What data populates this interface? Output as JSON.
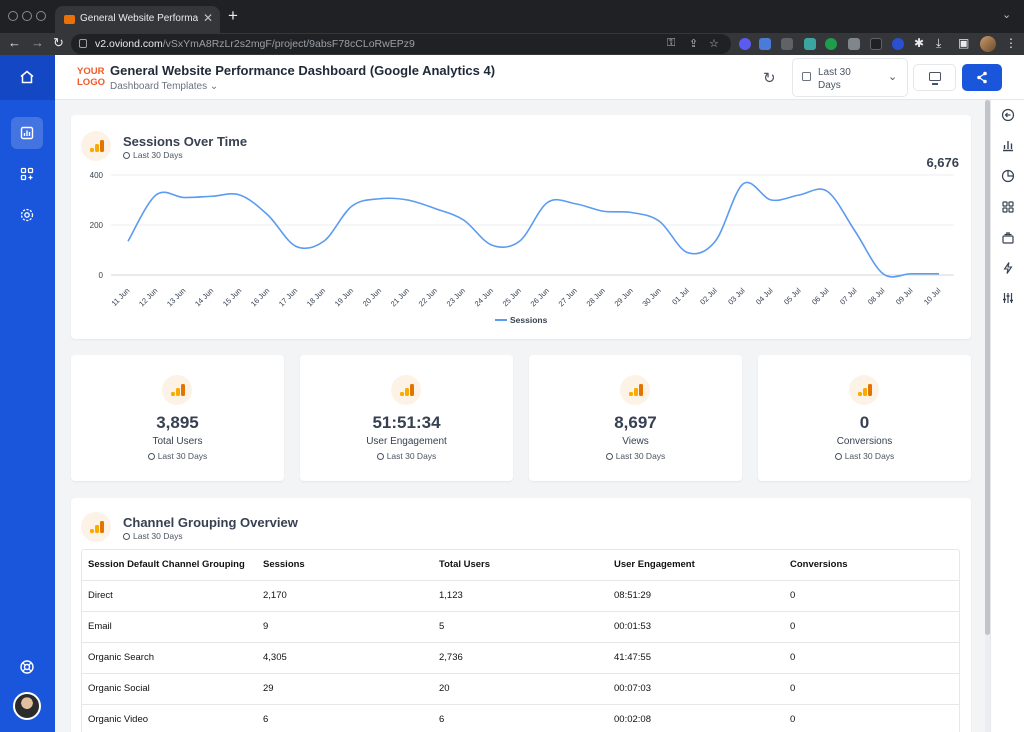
{
  "browser": {
    "tab_title": "General Website Performance",
    "url_domain": "v2.oviond.com",
    "url_path": "/vSxYmA8RzLr2s2mgF/project/9absF78cCLoRwEPz9"
  },
  "header": {
    "logo_line1": "YOUR",
    "logo_line2": "LOGO",
    "title": "General Website Performance Dashboard (Google Analytics 4)",
    "subnav": "Dashboard Templates",
    "date_range": "Last 30 Days"
  },
  "sessions_card": {
    "title": "Sessions Over Time",
    "subtitle": "Last 30 Days",
    "total": "6,676"
  },
  "chart_data": {
    "type": "line",
    "title": "Sessions Over Time",
    "x": [
      "11 Jun",
      "12 Jun",
      "13 Jun",
      "14 Jun",
      "15 Jun",
      "16 Jun",
      "17 Jun",
      "18 Jun",
      "19 Jun",
      "20 Jun",
      "21 Jun",
      "22 Jun",
      "23 Jun",
      "24 Jun",
      "25 Jun",
      "26 Jun",
      "27 Jun",
      "28 Jun",
      "29 Jun",
      "30 Jun",
      "01 Jul",
      "02 Jul",
      "03 Jul",
      "04 Jul",
      "05 Jul",
      "06 Jul",
      "07 Jul",
      "08 Jul",
      "09 Jul",
      "10 Jul"
    ],
    "series": [
      {
        "name": "Sessions",
        "values": [
          135,
          320,
          310,
          315,
          320,
          240,
          115,
          135,
          275,
          305,
          300,
          265,
          220,
          120,
          135,
          290,
          285,
          255,
          250,
          215,
          90,
          135,
          365,
          300,
          320,
          335,
          175,
          5,
          5,
          5
        ]
      }
    ],
    "yticks": [
      0,
      200,
      400
    ],
    "ylim": [
      0,
      400
    ],
    "legend": "bottom-center",
    "grid": true,
    "color": "#5b9bf0"
  },
  "kpis": [
    {
      "value": "3,895",
      "label": "Total Users",
      "sub": "Last 30 Days"
    },
    {
      "value": "51:51:34",
      "label": "User Engagement",
      "sub": "Last 30 Days"
    },
    {
      "value": "8,697",
      "label": "Views",
      "sub": "Last 30 Days"
    },
    {
      "value": "0",
      "label": "Conversions",
      "sub": "Last 30 Days"
    }
  ],
  "channel": {
    "title": "Channel Grouping Overview",
    "subtitle": "Last 30 Days",
    "columns": [
      "Session Default Channel Grouping",
      "Sessions",
      "Total Users",
      "User Engagement",
      "Conversions"
    ],
    "rows": [
      [
        "Direct",
        "2,170",
        "1,123",
        "08:51:29",
        "0"
      ],
      [
        "Email",
        "9",
        "5",
        "00:01:53",
        "0"
      ],
      [
        "Organic Search",
        "4,305",
        "2,736",
        "41:47:55",
        "0"
      ],
      [
        "Organic Social",
        "29",
        "20",
        "00:07:03",
        "0"
      ],
      [
        "Organic Video",
        "6",
        "6",
        "00:02:08",
        "0"
      ]
    ]
  },
  "colors": {
    "primary": "#1a56db",
    "ga_orange": "#f9ab00",
    "ga_dark_orange": "#e37400"
  }
}
